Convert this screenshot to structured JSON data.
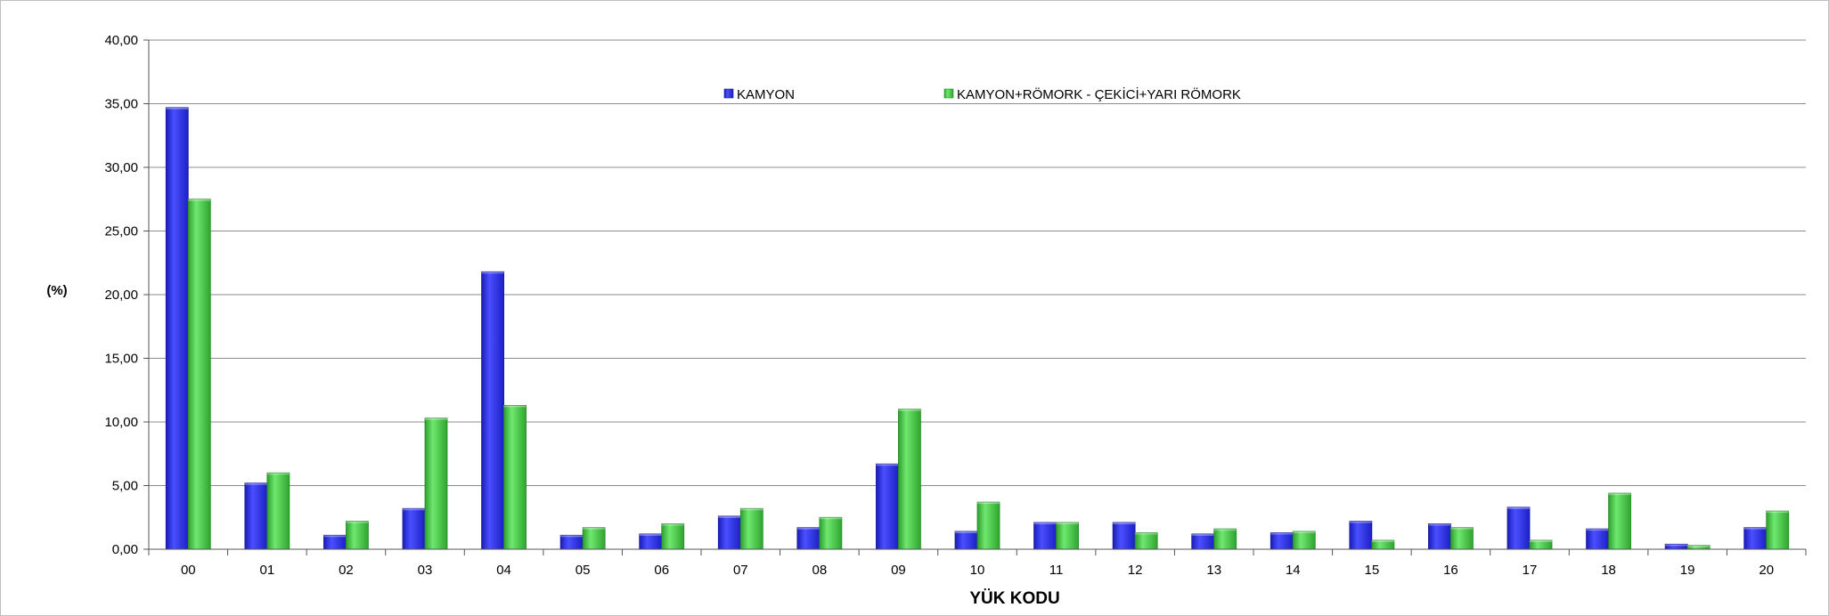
{
  "chart_data": {
    "type": "bar",
    "xlabel": "YÜK KODU",
    "ylabel": "(%)",
    "ylim": [
      0,
      40
    ],
    "yticks": [
      "0,00",
      "5,00",
      "10,00",
      "15,00",
      "20,00",
      "25,00",
      "30,00",
      "35,00",
      "40,00"
    ],
    "grid": true,
    "legend_position": "top-center",
    "categories": [
      "00",
      "01",
      "02",
      "03",
      "04",
      "05",
      "06",
      "07",
      "08",
      "09",
      "10",
      "11",
      "12",
      "13",
      "14",
      "15",
      "16",
      "17",
      "18",
      "19",
      "20"
    ],
    "series": [
      {
        "name": "KAMYON",
        "color": "#2b2fe8",
        "values": [
          34.7,
          5.2,
          1.1,
          3.2,
          21.8,
          1.1,
          1.2,
          2.6,
          1.7,
          6.7,
          1.4,
          2.1,
          2.1,
          1.2,
          1.3,
          2.2,
          2.0,
          3.3,
          1.6,
          0.4,
          1.7
        ]
      },
      {
        "name": "KAMYON+RÖMORK - ÇEKİCİ+YARI RÖMORK",
        "color": "#3fc43f",
        "values": [
          27.5,
          6.0,
          2.2,
          10.3,
          11.3,
          1.7,
          2.0,
          3.2,
          2.5,
          11.0,
          3.7,
          2.1,
          1.3,
          1.6,
          1.4,
          0.7,
          1.7,
          0.7,
          4.4,
          0.3,
          3.0
        ]
      }
    ]
  }
}
